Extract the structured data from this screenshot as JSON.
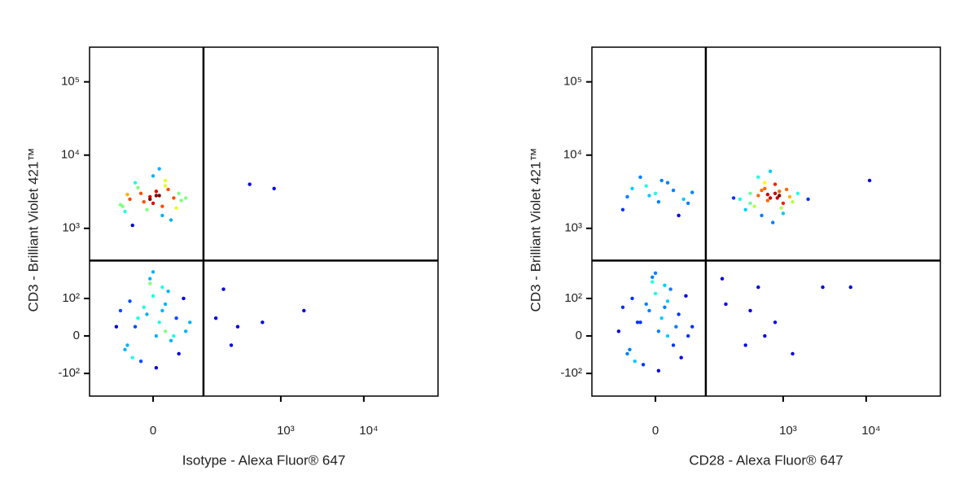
{
  "chart_data": [
    {
      "type": "scatter",
      "xlabel": "Isotype - Alexa Fluor® 647",
      "ylabel": "CD3 - Brilliant Violet 421™",
      "xscale": "biexponential",
      "yscale": "biexponential",
      "xlim": [
        -164,
        78300
      ],
      "ylim": [
        -220,
        297500
      ],
      "xticks": [
        0,
        {
          "value": 1000,
          "label": "10³"
        },
        {
          "value": 10000,
          "label": "10⁴"
        }
      ],
      "yticks": [
        {
          "value": -100,
          "label": "-10²"
        },
        0,
        {
          "value": 100,
          "label": "10²"
        },
        {
          "value": 1000,
          "label": "10³"
        },
        {
          "value": 10000,
          "label": "10⁴"
        },
        {
          "value": 100000,
          "label": "10⁵"
        }
      ],
      "gate": {
        "x": 110,
        "y": 360
      },
      "x": [
        -40,
        -20,
        0,
        10,
        25,
        -55,
        35,
        -10,
        5,
        50,
        -30,
        15,
        -5,
        20,
        -45,
        40,
        0,
        -15,
        30,
        -25,
        60,
        -60,
        10,
        -35,
        45,
        -5,
        20,
        -50,
        5,
        15,
        -30,
        -10,
        5,
        20,
        -50,
        40,
        0,
        -20,
        15,
        60,
        -60,
        30,
        -5,
        10,
        -40,
        45,
        -15,
        25,
        -70,
        5,
        0,
        35,
        -25,
        55,
        -45,
        15,
        -5,
        70,
        -35,
        20,
        420,
        830,
        160,
        250,
        600,
        1900,
        300,
        200
      ],
      "y": [
        2500,
        3000,
        2200,
        2800,
        3400,
        2000,
        2600,
        1800,
        3200,
        2400,
        4200,
        1500,
        2700,
        3800,
        2900,
        1900,
        5200,
        2300,
        1300,
        3600,
        2600,
        2100,
        6500,
        1100,
        3000,
        2500,
        4500,
        1700,
        2800,
        2000,
        20,
        50,
        0,
        80,
        -30,
        40,
        110,
        -60,
        150,
        10,
        60,
        -10,
        200,
        30,
        90,
        -40,
        70,
        130,
        20,
        -80,
        250,
        0,
        40,
        100,
        -20,
        60,
        170,
        30,
        -50,
        10,
        4000,
        3500,
        40,
        -20,
        30,
        60,
        20,
        140
      ]
    },
    {
      "type": "scatter",
      "xlabel": "CD28 - Alexa Fluor® 647",
      "ylabel": "CD3 - Brilliant Violet 421™",
      "xscale": "biexponential",
      "yscale": "biexponential",
      "xlim": [
        -164,
        78300
      ],
      "ylim": [
        -220,
        297500
      ],
      "xticks": [
        0,
        {
          "value": 1000,
          "label": "10³"
        },
        {
          "value": 10000,
          "label": "10⁴"
        }
      ],
      "yticks": [
        {
          "value": -100,
          "label": "-10²"
        },
        0,
        {
          "value": 100,
          "label": "10²"
        },
        {
          "value": 1000,
          "label": "10³"
        },
        {
          "value": 10000,
          "label": "10⁴"
        },
        {
          "value": 100000,
          "label": "10⁵"
        }
      ],
      "gate": {
        "x": 110,
        "y": 360
      },
      "x": [
        -30,
        -10,
        5,
        20,
        -50,
        40,
        0,
        -20,
        15,
        60,
        -60,
        30,
        -5,
        10,
        -40,
        45,
        -15,
        25,
        -70,
        5,
        0,
        35,
        -25,
        55,
        -45,
        15,
        -5,
        70,
        -35,
        20,
        -40,
        -10,
        20,
        50,
        -60,
        0,
        30,
        -25,
        60,
        10,
        -50,
        40,
        -15,
        70,
        5,
        300,
        400,
        500,
        600,
        700,
        800,
        900,
        1000,
        1200,
        1500,
        350,
        450,
        550,
        650,
        750,
        850,
        950,
        1100,
        1300,
        250,
        500,
        600,
        700,
        800,
        650,
        550,
        1000,
        400,
        900,
        2000,
        200,
        350,
        500,
        800,
        1300,
        180,
        600,
        400,
        3000,
        6500,
        11000
      ],
      "y": [
        30,
        60,
        10,
        90,
        -40,
        50,
        120,
        -70,
        160,
        0,
        70,
        -20,
        210,
        40,
        100,
        -50,
        80,
        140,
        10,
        -90,
        240,
        20,
        30,
        110,
        -30,
        70,
        180,
        20,
        -60,
        0,
        3500,
        2800,
        4200,
        2500,
        1800,
        3000,
        3300,
        5000,
        2200,
        4500,
        2700,
        1500,
        3800,
        3100,
        2300,
        2500,
        3000,
        2800,
        3500,
        2600,
        4000,
        3200,
        2200,
        2700,
        3000,
        1800,
        2000,
        1500,
        2400,
        1200,
        2600,
        1900,
        3400,
        2300,
        2600,
        5000,
        4200,
        6000,
        3000,
        2900,
        3300,
        1600,
        2200,
        2800,
        2500,
        80,
        -20,
        150,
        30,
        -40,
        200,
        0,
        60,
        150,
        150,
        4500
      ]
    }
  ]
}
